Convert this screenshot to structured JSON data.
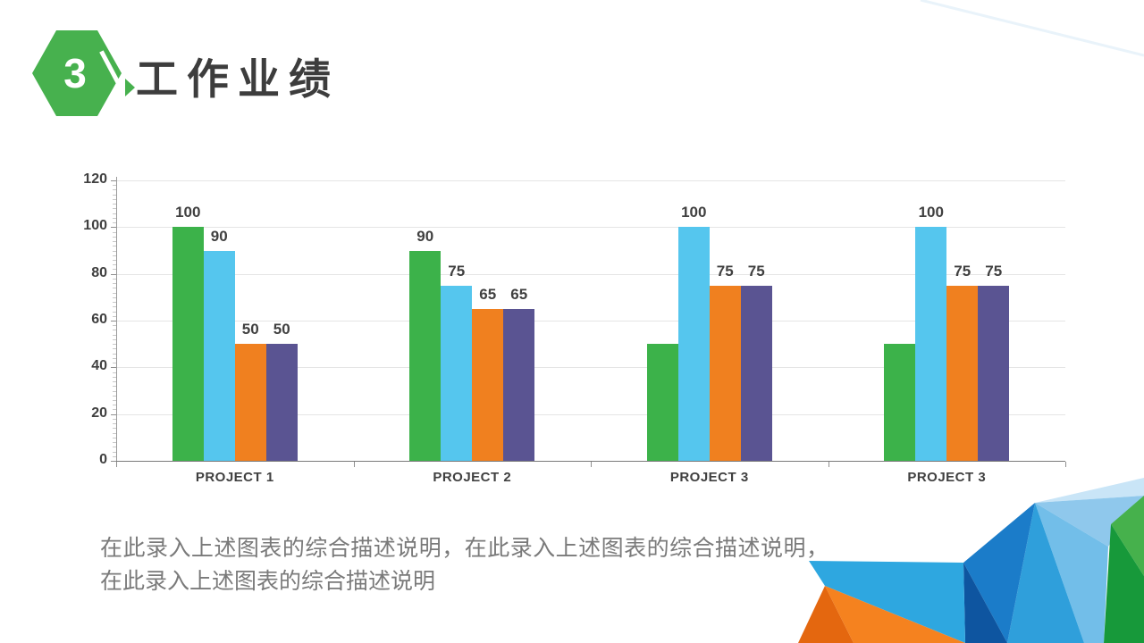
{
  "header": {
    "badge_number": "3",
    "title": "工作业绩",
    "badge_color": "#47B14E"
  },
  "chart_data": {
    "type": "bar",
    "title": "",
    "xlabel": "",
    "ylabel": "",
    "categories": [
      "PROJECT 1",
      "PROJECT 2",
      "PROJECT 3",
      "PROJECT 3"
    ],
    "series": [
      {
        "name": "series-green",
        "color": "#3CB24A",
        "values": [
          100,
          90,
          50,
          50
        ],
        "labels": [
          "100",
          "90",
          null,
          null
        ]
      },
      {
        "name": "series-blue",
        "color": "#55C6EE",
        "values": [
          90,
          75,
          100,
          100
        ],
        "labels": [
          "90",
          "75",
          "100",
          "100"
        ]
      },
      {
        "name": "series-orange",
        "color": "#F0801F",
        "values": [
          50,
          65,
          75,
          75
        ],
        "labels": [
          "50",
          "65",
          "75",
          "75"
        ]
      },
      {
        "name": "series-purple",
        "color": "#5A5492",
        "values": [
          50,
          65,
          75,
          75
        ],
        "labels": [
          "50",
          "65",
          "75",
          "75"
        ]
      }
    ],
    "y_ticks": [
      0,
      20,
      40,
      60,
      80,
      100,
      120
    ],
    "ylim": [
      0,
      120
    ],
    "minor_tick_step": 2,
    "grid": true,
    "legend": "none"
  },
  "description": {
    "text": "在此录入上述图表的综合描述说明，在此录入上述图表的综合描述说明，在此录入上述图表的综合描述说明"
  },
  "decoration": {
    "colors": {
      "dark_orange": "#E4670F",
      "orange": "#F5821F",
      "azure": "#2EA7E0",
      "navy": "#0E55A0",
      "strong_blue": "#1B7CC9",
      "mid_azure": "#2F9FDB",
      "sky_blue": "#72BEE9",
      "pale_blue": "#8FC8EC",
      "palest_blue": "#C9E5F7",
      "bright_green": "#46B14C",
      "dark_green": "#17993A",
      "faint_line": "#E9F3FA"
    }
  }
}
